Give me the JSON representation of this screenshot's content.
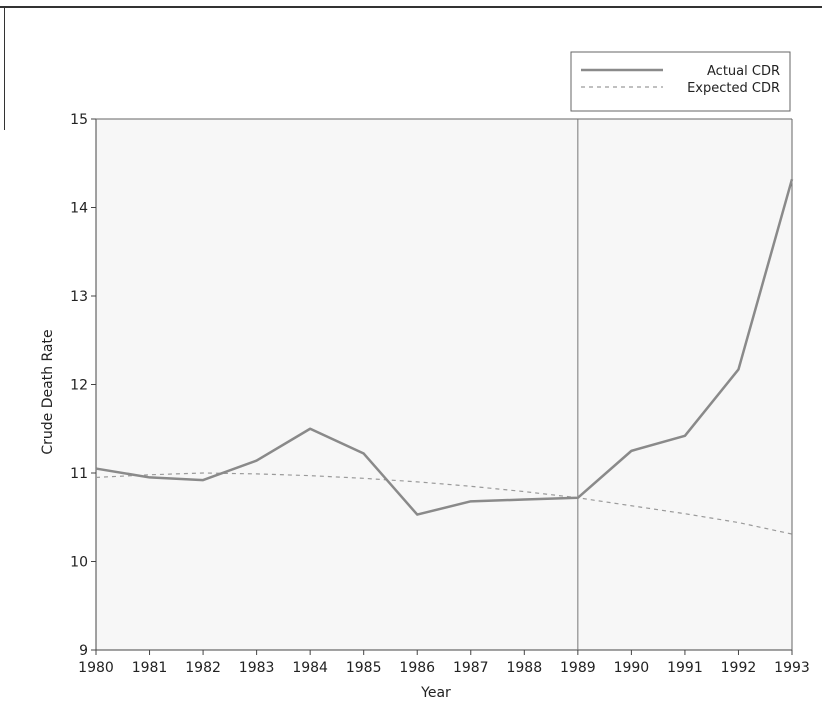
{
  "chart_data": {
    "type": "line",
    "title": "",
    "xlabel": "Year",
    "ylabel": "Crude Death Rate",
    "x": [
      "1980",
      "1981",
      "1982",
      "1983",
      "1984",
      "1985",
      "1986",
      "1987",
      "1988",
      "1989",
      "1990",
      "1991",
      "1992",
      "1993"
    ],
    "xlim": [
      1980,
      1993
    ],
    "ylim": [
      9,
      15
    ],
    "yticks": [
      "9",
      "10",
      "11",
      "12",
      "13",
      "14",
      "15"
    ],
    "series": [
      {
        "name": "Actual CDR",
        "style": "solid",
        "color": "#8a8a8a",
        "values": [
          11.05,
          10.95,
          10.92,
          11.14,
          11.5,
          11.22,
          10.53,
          10.68,
          10.7,
          10.72,
          11.25,
          11.42,
          12.17,
          14.32
        ]
      },
      {
        "name": "Expected CDR",
        "style": "dashed",
        "color": "#9a9a9a",
        "values": [
          10.95,
          10.98,
          11.0,
          10.99,
          10.97,
          10.94,
          10.9,
          10.85,
          10.79,
          10.72,
          10.63,
          10.54,
          10.44,
          10.31
        ]
      }
    ],
    "annotations": [
      {
        "type": "vertical-line",
        "x": 1989
      }
    ],
    "grid": false,
    "legend_position": "top-right",
    "background_tint": "#f7f7f7"
  }
}
